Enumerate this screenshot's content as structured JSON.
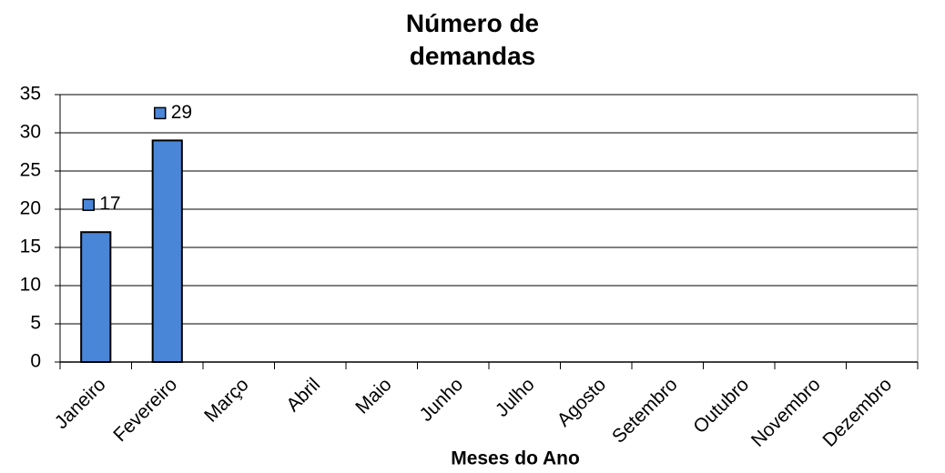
{
  "chart_data": {
    "type": "bar",
    "title": "Número de demandas",
    "x_label": "Meses do Ano",
    "categories": [
      "Janeiro",
      "Fevereiro",
      "Março",
      "Abril",
      "Maio",
      "Junho",
      "Julho",
      "Agosto",
      "Setembro",
      "Outubro",
      "Novembro",
      "Dezembro"
    ],
    "values": [
      17,
      29,
      null,
      null,
      null,
      null,
      null,
      null,
      null,
      null,
      null,
      null
    ],
    "color": "#4a86d8",
    "ylim": [
      0,
      35
    ],
    "yticks": [
      0,
      5,
      10,
      15,
      20,
      25,
      30,
      35
    ],
    "grid": true
  }
}
